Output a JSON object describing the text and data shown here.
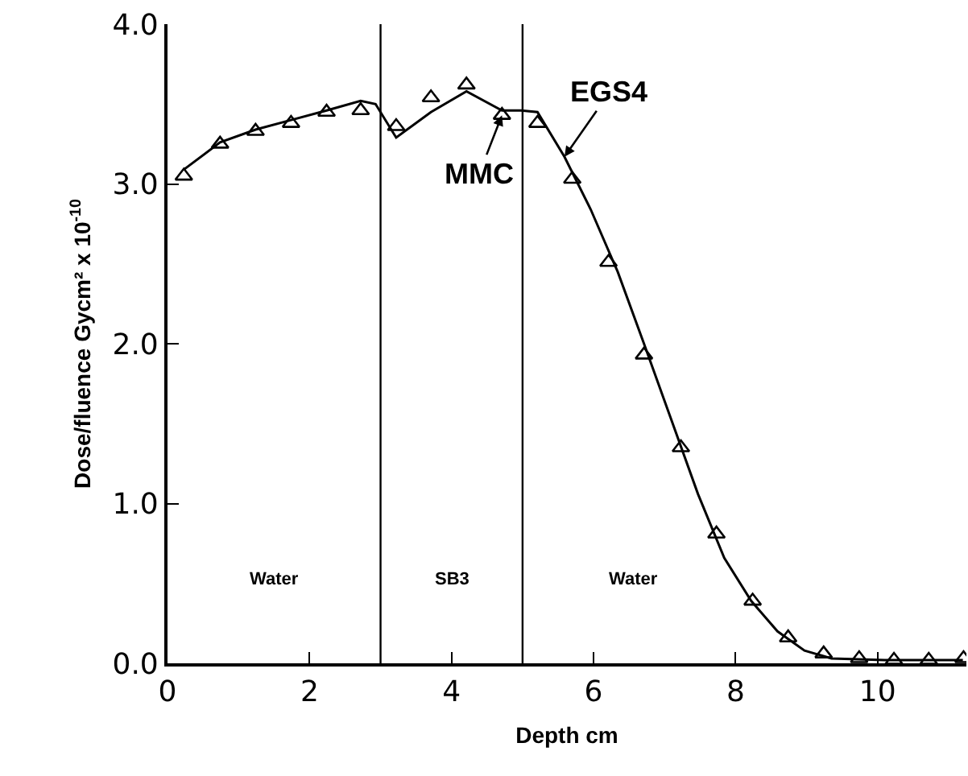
{
  "chart_data": {
    "type": "line",
    "xlabel": "Depth cm",
    "ylabel": "Dose/fluence Gycm² x 10$^{-10}$",
    "xlim": [
      0,
      11.25
    ],
    "xticks": [
      0,
      2,
      4,
      6,
      8,
      10
    ],
    "ylim": [
      0,
      4
    ],
    "yticks": [
      {
        "value": 0,
        "label": "0.0"
      },
      {
        "value": 1,
        "label": "1.0"
      },
      {
        "value": 2,
        "label": "2.0"
      },
      {
        "value": 3,
        "label": "3.0"
      },
      {
        "value": 4,
        "label": "4.0"
      }
    ],
    "grid": false,
    "legend": false,
    "series": [
      {
        "color": "#000000",
        "marker": "none",
        "line_style": "solid",
        "x": [
          0.23,
          0.74,
          1.24,
          1.74,
          2.24,
          2.72,
          2.93,
          3.22,
          3.71,
          4.21,
          4.71,
          4.98,
          5.21,
          5.59,
          5.96,
          6.34,
          6.71,
          7.09,
          7.47,
          7.84,
          8.22,
          8.59,
          8.97,
          9.35,
          10.1,
          11.2
        ],
        "values": [
          3.09,
          3.26,
          3.34,
          3.4,
          3.46,
          3.52,
          3.5,
          3.29,
          3.45,
          3.58,
          3.46,
          3.46,
          3.45,
          3.17,
          2.84,
          2.45,
          2.0,
          1.53,
          1.06,
          0.66,
          0.39,
          0.2,
          0.08,
          0.03,
          0.02,
          0.02
        ]
      },
      {
        "type": "scatter",
        "color": "#000000",
        "marker": "triangle",
        "x": [
          0.23,
          0.74,
          1.24,
          1.74,
          2.24,
          2.72,
          3.22,
          3.71,
          4.21,
          4.71,
          5.21,
          5.7,
          6.21,
          6.71,
          7.23,
          7.73,
          8.24,
          8.74,
          9.24,
          9.74,
          10.23,
          10.72,
          11.21
        ],
        "values": [
          3.05,
          3.25,
          3.33,
          3.38,
          3.45,
          3.46,
          3.36,
          3.54,
          3.62,
          3.43,
          3.38,
          3.03,
          2.51,
          1.93,
          1.35,
          0.81,
          0.39,
          0.16,
          0.06,
          0.03,
          0.02,
          0.02,
          0.03
        ]
      }
    ],
    "ref_lines": [
      {
        "axis": "x",
        "value": 3,
        "color": "#000000"
      },
      {
        "axis": "x",
        "value": 5,
        "color": "#000000"
      }
    ],
    "annotations": [
      {
        "text": "MMC",
        "x": 4.71,
        "y": 3.43
      },
      {
        "text": "EGS4",
        "x": 5.59,
        "y": 3.17
      },
      "Water",
      "SB3",
      "Water"
    ]
  }
}
